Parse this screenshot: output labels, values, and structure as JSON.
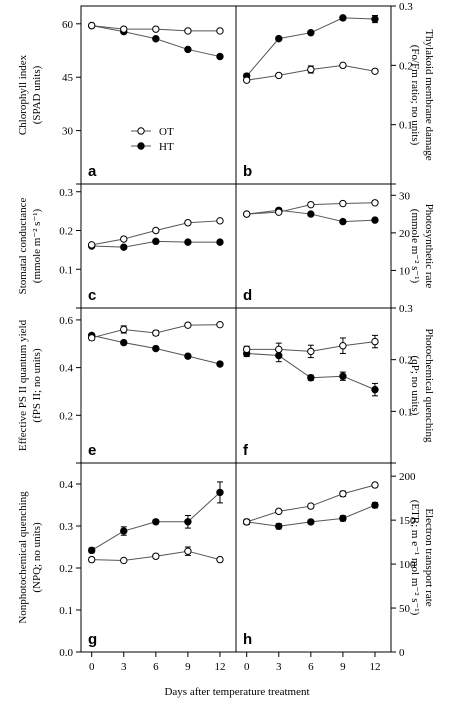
{
  "figure": {
    "xlabel": "Days after temperature treatment",
    "legend": {
      "placement": "inside-panel-a-bottom-right",
      "entries": [
        {
          "label": "OT",
          "marker": "open-circle"
        },
        {
          "label": "HT",
          "marker": "filled-circle"
        }
      ]
    },
    "colors": {
      "ot_fill": "#ffffff",
      "ht_fill": "#000000",
      "line": "#555555",
      "axis": "#000000"
    }
  },
  "chart_data": [
    {
      "panel": "a",
      "type": "line",
      "side": "left",
      "ylabel_lines": [
        "Chlorophyll index",
        "(SPAD units)"
      ],
      "x": [
        0,
        3,
        6,
        9,
        12
      ],
      "xlim": [
        -1,
        13.5
      ],
      "xticks": [
        0,
        3,
        6,
        9,
        12
      ],
      "ylim": [
        15,
        65
      ],
      "yticks": [
        15,
        30,
        45,
        60
      ],
      "ytick_labels": [
        "",
        "30",
        "45",
        "60"
      ],
      "series": [
        {
          "name": "OT",
          "values": [
            59.5,
            58.5,
            58.5,
            58,
            58
          ],
          "err": [
            0.4,
            0.4,
            0.4,
            0.4,
            0.4
          ]
        },
        {
          "name": "HT",
          "values": [
            59.5,
            57.8,
            55.8,
            52.8,
            50.8
          ],
          "err": [
            0.5,
            0.5,
            0.5,
            0.5,
            0.5
          ]
        }
      ]
    },
    {
      "panel": "b",
      "type": "line",
      "side": "right",
      "ylabel_lines": [
        "Thylakoid membrane damage",
        "(Fo/Fm ratio; no units)"
      ],
      "x": [
        0,
        3,
        6,
        9,
        12
      ],
      "xlim": [
        -1,
        13.5
      ],
      "xticks": [
        0,
        3,
        6,
        9,
        12
      ],
      "ylim": [
        0.0,
        0.3
      ],
      "yticks": [
        0.0,
        0.1,
        0.2,
        0.3
      ],
      "ytick_labels": [
        "",
        "0.1",
        "0.2",
        "0.3"
      ],
      "series": [
        {
          "name": "OT",
          "values": [
            0.175,
            0.183,
            0.193,
            0.2,
            0.19
          ],
          "err": [
            0.003,
            0.003,
            0.006,
            0.002,
            0.003
          ]
        },
        {
          "name": "HT",
          "values": [
            0.182,
            0.245,
            0.255,
            0.28,
            0.278
          ],
          "err": [
            0.004,
            0.003,
            0.003,
            0.003,
            0.006
          ]
        }
      ]
    },
    {
      "panel": "c",
      "type": "line",
      "side": "left",
      "ylabel_lines": [
        "Stomatal conductance",
        "(mmole m⁻² s⁻¹)"
      ],
      "x": [
        0,
        3,
        6,
        9,
        12
      ],
      "xlim": [
        -1,
        13.5
      ],
      "xticks": [
        0,
        3,
        6,
        9,
        12
      ],
      "ylim": [
        0.0,
        0.32
      ],
      "yticks": [
        0.0,
        0.1,
        0.2,
        0.3
      ],
      "ytick_labels": [
        "",
        "0.1",
        "0.2",
        "0.3"
      ],
      "series": [
        {
          "name": "OT",
          "values": [
            0.163,
            0.178,
            0.2,
            0.22,
            0.225
          ],
          "err": [
            0.003,
            0.003,
            0.003,
            0.004,
            0.003
          ]
        },
        {
          "name": "HT",
          "values": [
            0.16,
            0.157,
            0.172,
            0.17,
            0.17
          ],
          "err": [
            0.004,
            0.003,
            0.003,
            0.003,
            0.003
          ]
        }
      ]
    },
    {
      "panel": "d",
      "type": "line",
      "side": "right",
      "ylabel_lines": [
        "Photosynthetic rate",
        "(mmole m⁻² s⁻¹)"
      ],
      "x": [
        0,
        3,
        6,
        9,
        12
      ],
      "xlim": [
        -1,
        13.5
      ],
      "xticks": [
        0,
        3,
        6,
        9,
        12
      ],
      "ylim": [
        0,
        33
      ],
      "yticks": [
        0,
        10,
        20,
        30
      ],
      "ytick_labels": [
        "",
        "10",
        "20",
        "30"
      ],
      "series": [
        {
          "name": "OT",
          "values": [
            25,
            25.5,
            27.5,
            27.8,
            28
          ],
          "err": [
            0.4,
            0.4,
            0.4,
            0.4,
            0.5
          ]
        },
        {
          "name": "HT",
          "values": [
            25,
            26,
            25,
            23,
            23.4
          ],
          "err": [
            0.4,
            0.5,
            0.4,
            0.3,
            0.3
          ]
        }
      ]
    },
    {
      "panel": "e",
      "type": "line",
      "side": "left",
      "ylabel_lines": [
        "Effective PS II quantum yield",
        "(fPS II; no units)"
      ],
      "x": [
        0,
        3,
        6,
        9,
        12
      ],
      "xlim": [
        -1,
        13.5
      ],
      "xticks": [
        0,
        3,
        6,
        9,
        12
      ],
      "ylim": [
        0.0,
        0.65
      ],
      "yticks": [
        0.0,
        0.2,
        0.4,
        0.6
      ],
      "ytick_labels": [
        "",
        "0.2",
        "0.4",
        "0.6"
      ],
      "series": [
        {
          "name": "OT",
          "values": [
            0.525,
            0.56,
            0.545,
            0.578,
            0.58
          ],
          "err": [
            0.01,
            0.015,
            0.01,
            0.006,
            0.006
          ]
        },
        {
          "name": "HT",
          "values": [
            0.535,
            0.505,
            0.48,
            0.448,
            0.415
          ],
          "err": [
            0.008,
            0.007,
            0.007,
            0.006,
            0.006
          ]
        }
      ]
    },
    {
      "panel": "f",
      "type": "line",
      "side": "right",
      "ylabel_lines": [
        "Photochemical quenching",
        "(qP; no units)"
      ],
      "x": [
        0,
        3,
        6,
        9,
        12
      ],
      "xlim": [
        -1,
        13.5
      ],
      "xticks": [
        0,
        3,
        6,
        9,
        12
      ],
      "ylim": [
        0.0,
        0.3
      ],
      "yticks": [
        0.0,
        0.1,
        0.2,
        0.3
      ],
      "ytick_labels": [
        "",
        "0.1",
        "0.2",
        "0.3"
      ],
      "series": [
        {
          "name": "OT",
          "values": [
            0.22,
            0.22,
            0.216,
            0.227,
            0.235
          ],
          "err": [
            0.006,
            0.012,
            0.012,
            0.015,
            0.012
          ]
        },
        {
          "name": "HT",
          "values": [
            0.212,
            0.208,
            0.165,
            0.168,
            0.142
          ],
          "err": [
            0.006,
            0.012,
            0.005,
            0.008,
            0.012
          ]
        }
      ]
    },
    {
      "panel": "g",
      "type": "line",
      "side": "left",
      "ylabel_lines": [
        "Nonphotochemical quenching",
        "(NPQ; no units)"
      ],
      "x": [
        0,
        3,
        6,
        9,
        12
      ],
      "xlim": [
        -1,
        13.5
      ],
      "xticks": [
        0,
        3,
        6,
        9,
        12
      ],
      "ylim": [
        0.0,
        0.45
      ],
      "yticks": [
        0.0,
        0.1,
        0.2,
        0.3,
        0.4
      ],
      "ytick_labels": [
        "0.0",
        "0.1",
        "0.2",
        "0.3",
        "0.4"
      ],
      "series": [
        {
          "name": "OT",
          "values": [
            0.22,
            0.218,
            0.228,
            0.24,
            0.22
          ],
          "err": [
            0.005,
            0.004,
            0.005,
            0.01,
            0.004
          ]
        },
        {
          "name": "HT",
          "values": [
            0.242,
            0.288,
            0.31,
            0.31,
            0.38
          ],
          "err": [
            0.006,
            0.01,
            0.005,
            0.015,
            0.025
          ]
        }
      ]
    },
    {
      "panel": "h",
      "type": "line",
      "side": "right",
      "ylabel_lines": [
        "Electron transport rate",
        "(ETR; m e⁻¹ mol m⁻² s⁻¹)"
      ],
      "x": [
        0,
        3,
        6,
        9,
        12
      ],
      "xlim": [
        -1,
        13.5
      ],
      "xticks": [
        0,
        3,
        6,
        9,
        12
      ],
      "ylim": [
        0,
        215
      ],
      "yticks": [
        0,
        50,
        100,
        150,
        200
      ],
      "ytick_labels": [
        "0",
        "50",
        "100",
        "150",
        "200"
      ],
      "series": [
        {
          "name": "OT",
          "values": [
            148,
            160,
            166,
            180,
            190
          ],
          "err": [
            2,
            2,
            2,
            3,
            2
          ]
        },
        {
          "name": "HT",
          "values": [
            148,
            143,
            148,
            152,
            167
          ],
          "err": [
            3,
            3,
            2,
            3,
            3
          ]
        }
      ]
    }
  ]
}
